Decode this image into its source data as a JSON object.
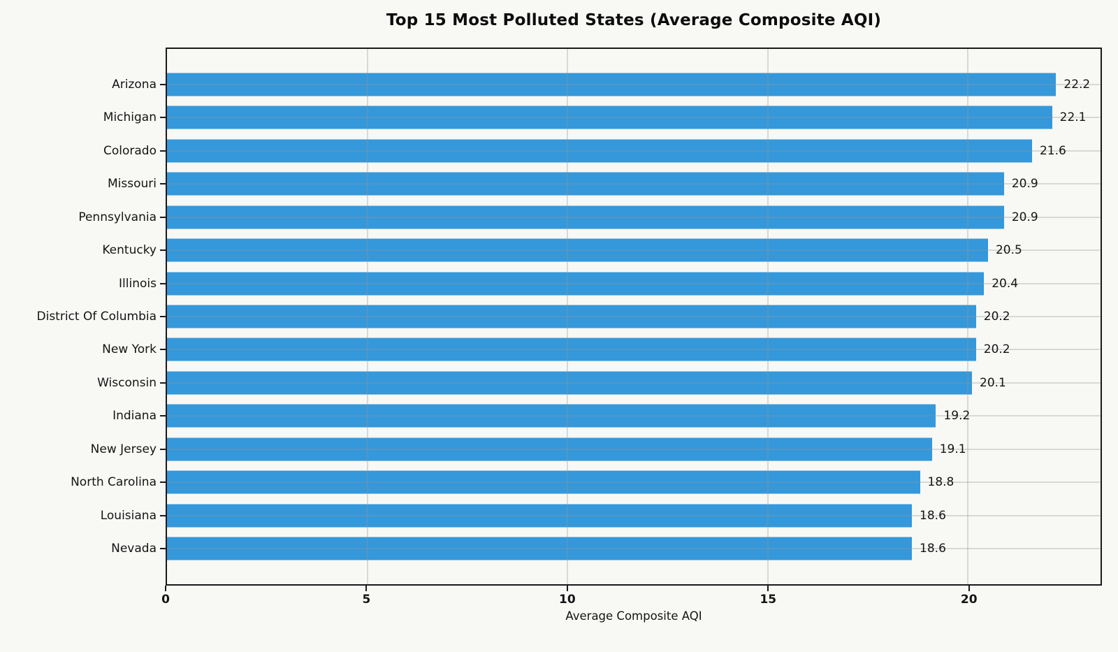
{
  "title": "Top 15 Most Polluted States (Average Composite AQI)",
  "chart_data": {
    "type": "bar",
    "orientation": "horizontal",
    "title": "Top 15 Most Polluted States (Average Composite AQI)",
    "categories": [
      "Arizona",
      "Michigan",
      "Colorado",
      "Missouri",
      "Pennsylvania",
      "Kentucky",
      "Illinois",
      "District Of Columbia",
      "New York",
      "Wisconsin",
      "Indiana",
      "New Jersey",
      "North Carolina",
      "Louisiana",
      "Nevada"
    ],
    "values": [
      22.2,
      22.1,
      21.6,
      20.9,
      20.9,
      20.5,
      20.4,
      20.2,
      20.2,
      20.1,
      19.2,
      19.1,
      18.8,
      18.6,
      18.6
    ],
    "value_labels": [
      "22.2",
      "22.1",
      "21.6",
      "20.9",
      "20.9",
      "20.5",
      "20.4",
      "20.2",
      "20.2",
      "20.1",
      "19.2",
      "19.1",
      "18.8",
      "18.6",
      "18.6"
    ],
    "xlabel": "Average Composite AQI",
    "ylabel": "",
    "xlim": [
      0,
      23.31
    ],
    "xticks": [
      0,
      5,
      10,
      15,
      20
    ],
    "grid": true,
    "legend": "none",
    "bar_color": "#3498db",
    "background_color": "#f8f8f5",
    "frame_color": "#1a1a1a",
    "gridline_color": "#949494",
    "text_color": "#141414"
  }
}
